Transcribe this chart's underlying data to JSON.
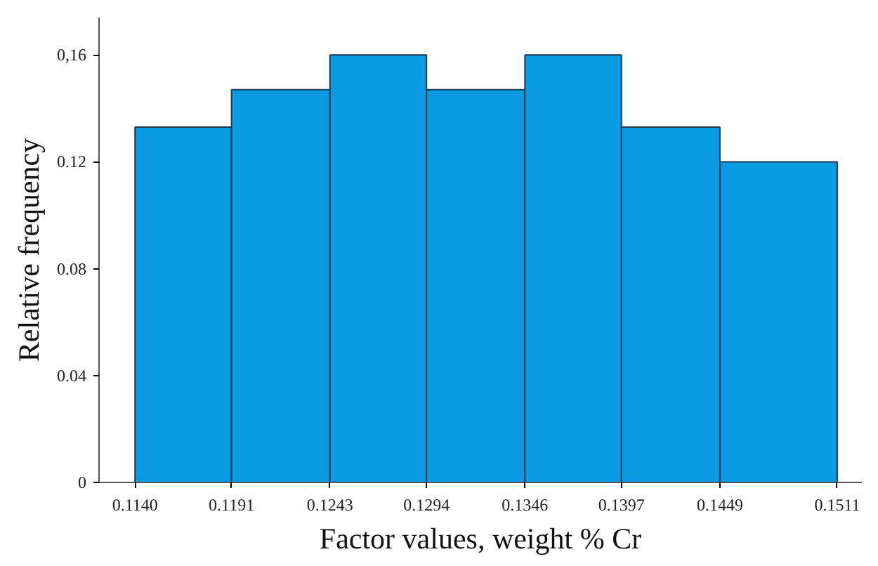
{
  "chart_data": {
    "type": "histogram",
    "xlabel": "Factor values, weight % Cr",
    "ylabel": "Relative frequency",
    "bins": [
      0.114,
      0.1191,
      0.1243,
      0.1294,
      0.1346,
      0.1397,
      0.1449,
      0.1511
    ],
    "values": [
      0.133,
      0.147,
      0.16,
      0.147,
      0.16,
      0.133,
      0.12
    ],
    "color": "#0a9be3",
    "xlim": [
      0.1121,
      0.1524
    ],
    "ylim": [
      0,
      0.174
    ],
    "xticks": [
      {
        "value": 0.114,
        "label": "0.1140"
      },
      0.1191,
      0.1243,
      0.1294,
      0.1346,
      0.1397,
      0.1449,
      0.1511
    ],
    "yticks": [
      0,
      0.04,
      0.08,
      0.12,
      {
        "value": 0.16,
        "label": "0,16"
      }
    ],
    "grid": false
  }
}
